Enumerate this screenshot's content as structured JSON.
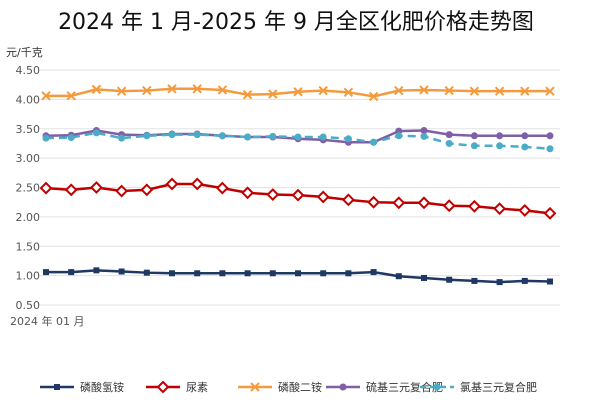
{
  "chart_data": {
    "type": "line",
    "title": "2024 年 1 月-2025 年 9 月全区化肥价格走势图",
    "ylabel": "元/千克",
    "xlabel": "",
    "x_tick_labels": [
      "2024 年 01 月"
    ],
    "ylim": [
      0.5,
      4.5
    ],
    "yticks": [
      "0.50",
      "1.00",
      "1.50",
      "2.00",
      "2.50",
      "3.00",
      "3.50",
      "4.00",
      "4.50"
    ],
    "grid": true,
    "legend_position": "bottom",
    "x_count": 21,
    "series": [
      {
        "name": "磷酸氢铵",
        "color": "#1f3864",
        "marker": "square",
        "dash": false,
        "values": [
          1.06,
          1.06,
          1.09,
          1.07,
          1.05,
          1.04,
          1.04,
          1.04,
          1.04,
          1.04,
          1.04,
          1.04,
          1.04,
          1.06,
          0.99,
          0.96,
          0.93,
          0.91,
          0.89,
          0.91,
          0.9
        ]
      },
      {
        "name": "尿素",
        "color": "#c00000",
        "marker": "diamond",
        "dash": false,
        "values": [
          2.49,
          2.46,
          2.5,
          2.44,
          2.46,
          2.56,
          2.56,
          2.49,
          2.41,
          2.38,
          2.37,
          2.34,
          2.29,
          2.25,
          2.24,
          2.24,
          2.19,
          2.18,
          2.14,
          2.11,
          2.06
        ]
      },
      {
        "name": "磷酸二铵",
        "color": "#f59a3c",
        "marker": "x",
        "dash": false,
        "values": [
          4.06,
          4.06,
          4.17,
          4.14,
          4.15,
          4.18,
          4.18,
          4.16,
          4.08,
          4.09,
          4.13,
          4.15,
          4.12,
          4.05,
          4.15,
          4.16,
          4.15,
          4.14,
          4.14,
          4.14,
          4.14
        ]
      },
      {
        "name": "硫基三元复合肥",
        "color": "#7f5fa8",
        "marker": "circle",
        "dash": false,
        "values": [
          3.38,
          3.39,
          3.47,
          3.4,
          3.39,
          3.41,
          3.41,
          3.38,
          3.36,
          3.36,
          3.33,
          3.31,
          3.27,
          3.27,
          3.46,
          3.47,
          3.4,
          3.38,
          3.38,
          3.38,
          3.38
        ]
      },
      {
        "name": "氯基三元复合肥",
        "color": "#4bacc6",
        "marker": "circle",
        "dash": true,
        "values": [
          3.34,
          3.35,
          3.43,
          3.34,
          3.38,
          3.4,
          3.4,
          3.38,
          3.36,
          3.37,
          3.36,
          3.36,
          3.33,
          3.27,
          3.38,
          3.37,
          3.25,
          3.21,
          3.21,
          3.19,
          3.16
        ]
      }
    ]
  }
}
